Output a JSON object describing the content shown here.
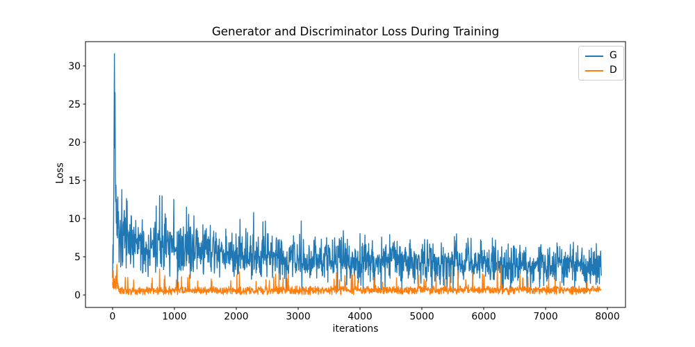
{
  "chart_data": {
    "type": "line",
    "title": "Generator and Discriminator Loss During Training",
    "xlabel": "iterations",
    "ylabel": "Loss",
    "xlim": [
      -438,
      8292
    ],
    "ylim": [
      -1.64,
      33.18
    ],
    "xticks": [
      0,
      1000,
      2000,
      3000,
      4000,
      5000,
      6000,
      7000,
      8000
    ],
    "yticks": [
      0,
      5,
      10,
      15,
      20,
      25,
      30
    ],
    "grid": false,
    "legend_position": "upper right",
    "x_start": 0,
    "x_end": 7900,
    "sample_step": 5,
    "seed": 7,
    "style": {
      "background": "#ffffff",
      "axes_edge": "#000000",
      "tick_color": "#000000",
      "text_color": "#000000",
      "legend_edge": "#cccccc",
      "legend_bg": "rgba(255,255,255,0.8)"
    },
    "series": [
      {
        "name": "G",
        "color": "#1f77b4",
        "line_width": 1.4,
        "head": [
          [
            0,
            2.3
          ],
          [
            5,
            6.8
          ],
          [
            10,
            4.0
          ],
          [
            15,
            8.5
          ],
          [
            20,
            14.0
          ],
          [
            25,
            23.5
          ],
          [
            30,
            31.6
          ],
          [
            33,
            22.0
          ],
          [
            36,
            18.5
          ],
          [
            40,
            26.5
          ],
          [
            44,
            16.0
          ],
          [
            48,
            11.5
          ],
          [
            55,
            14.8
          ],
          [
            60,
            9.2
          ],
          [
            65,
            12.5
          ],
          [
            70,
            8.0
          ],
          [
            75,
            11.0
          ],
          [
            80,
            7.6
          ],
          [
            85,
            12.8
          ],
          [
            90,
            8.9
          ],
          [
            95,
            10.5
          ],
          [
            100,
            9.0
          ]
        ],
        "envelope": [
          [
            100,
            7.4,
            2.9,
            14.0
          ],
          [
            300,
            6.4,
            2.6,
            12.0
          ],
          [
            700,
            6.1,
            2.5,
            13.2
          ],
          [
            1100,
            5.9,
            2.4,
            12.6
          ],
          [
            1600,
            5.6,
            2.3,
            9.6
          ],
          [
            2100,
            5.3,
            2.2,
            10.2
          ],
          [
            2400,
            5.2,
            2.2,
            10.8
          ],
          [
            3000,
            4.9,
            2.1,
            9.7
          ],
          [
            3600,
            4.7,
            2.0,
            8.6
          ],
          [
            4200,
            4.5,
            1.9,
            8.0
          ],
          [
            5000,
            4.3,
            1.8,
            7.4
          ],
          [
            5600,
            4.2,
            1.8,
            8.0
          ],
          [
            6300,
            4.05,
            1.75,
            7.3
          ],
          [
            7000,
            3.95,
            1.7,
            6.8
          ],
          [
            7900,
            3.9,
            1.7,
            7.0
          ]
        ],
        "forced_peaks": [
          [
            30,
            31.6
          ],
          [
            40,
            26.5
          ],
          [
            150,
            13.8
          ],
          [
            235,
            12.3
          ],
          [
            760,
            13.0
          ],
          [
            990,
            12.5
          ],
          [
            1460,
            9.2
          ],
          [
            2060,
            9.9
          ],
          [
            2280,
            10.8
          ],
          [
            3050,
            9.7
          ],
          [
            4480,
            7.9
          ],
          [
            5560,
            8.0
          ],
          [
            6190,
            7.2
          ],
          [
            7450,
            6.9
          ]
        ],
        "spike_prob": 0.028,
        "dip_prob": 0.012,
        "dip_range": [
          0.2,
          1.4
        ],
        "min": 0.12
      },
      {
        "name": "D",
        "color": "#ff7f0e",
        "line_width": 1.4,
        "head": [
          [
            0,
            1.7
          ],
          [
            5,
            1.0
          ],
          [
            10,
            3.2
          ],
          [
            15,
            1.4
          ],
          [
            20,
            0.8
          ],
          [
            25,
            1.3
          ],
          [
            30,
            2.1
          ],
          [
            35,
            0.9
          ],
          [
            40,
            1.7
          ],
          [
            45,
            1.0
          ],
          [
            50,
            2.4
          ],
          [
            55,
            0.8
          ],
          [
            60,
            1.2
          ],
          [
            65,
            2.8
          ],
          [
            70,
            4.0
          ],
          [
            75,
            2.0
          ],
          [
            80,
            0.9
          ],
          [
            85,
            1.6
          ],
          [
            90,
            0.8
          ],
          [
            95,
            1.2
          ],
          [
            100,
            0.7
          ]
        ],
        "envelope": [
          [
            100,
            0.62,
            0.45,
            2.3
          ],
          [
            500,
            0.55,
            0.4,
            2.5
          ],
          [
            1000,
            0.55,
            0.4,
            2.6
          ],
          [
            2000,
            0.6,
            0.42,
            3.0
          ],
          [
            3000,
            0.6,
            0.42,
            2.8
          ],
          [
            4000,
            0.6,
            0.42,
            2.9
          ],
          [
            5000,
            0.65,
            0.42,
            2.6
          ],
          [
            6250,
            0.68,
            0.45,
            4.3
          ],
          [
            7000,
            0.65,
            0.4,
            2.2
          ],
          [
            7900,
            0.65,
            0.4,
            2.0
          ]
        ],
        "forced_peaks": [
          [
            10,
            3.2
          ],
          [
            70,
            4.0
          ],
          [
            760,
            3.4
          ],
          [
            1240,
            2.6
          ],
          [
            2050,
            3.0
          ],
          [
            3620,
            2.9
          ],
          [
            5230,
            2.6
          ],
          [
            6220,
            4.3
          ],
          [
            7050,
            2.2
          ]
        ],
        "spike_prob": 0.045,
        "dip_prob": 0,
        "dip_range": [
          0,
          0
        ],
        "min": 0.05
      }
    ]
  }
}
